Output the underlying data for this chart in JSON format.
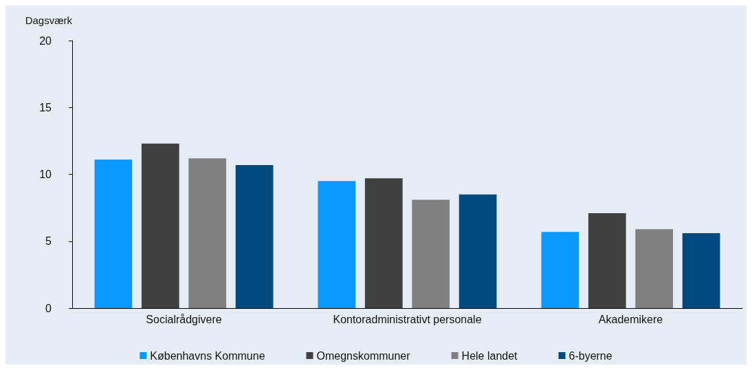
{
  "chart_data": {
    "type": "bar",
    "ylabel": "Dagsværk",
    "categories": [
      "Socialrådgivere",
      "Kontoradministrativt personale",
      "Akademikere"
    ],
    "series": [
      {
        "name": "Københavns Kommune",
        "color": "#0a99ff",
        "values": [
          11.1,
          9.5,
          5.7
        ]
      },
      {
        "name": "Omegnskommuner",
        "color": "#404040",
        "values": [
          12.3,
          9.7,
          7.1
        ]
      },
      {
        "name": "Hele landet",
        "color": "#808080",
        "values": [
          11.2,
          8.1,
          5.9
        ]
      },
      {
        "name": "6-byerne",
        "color": "#004a80",
        "values": [
          10.7,
          8.5,
          5.6
        ]
      }
    ],
    "ylim": [
      0,
      20
    ],
    "yticks": [
      0,
      5,
      10,
      15,
      20
    ],
    "grid": false,
    "legend": "bottom"
  }
}
